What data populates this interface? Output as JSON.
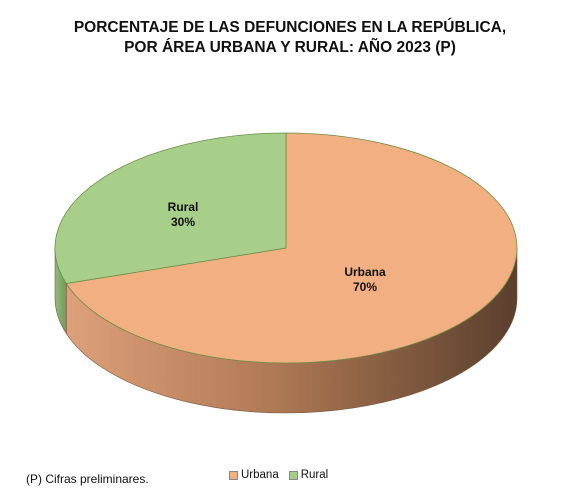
{
  "chart_data": {
    "type": "pie",
    "title": "PORCENTAJE DE LAS DEFUNCIONES EN LA REPÚBLICA, POR ÁREA URBANA Y RURAL: AÑO 2023 (P)",
    "title_lines": [
      "PORCENTAJE DE LAS DEFUNCIONES EN LA REPÚBLICA,",
      "POR ÁREA URBANA Y RURAL: AÑO 2023 (P)"
    ],
    "categories": [
      "Urbana",
      "Rural"
    ],
    "values": [
      70,
      30
    ],
    "value_labels": [
      "70%",
      "30%"
    ],
    "colors": [
      "#F2AF82",
      "#A7CF8A"
    ],
    "style": "3d",
    "legend_position": "bottom"
  },
  "footnote": "(P) Cifras  preliminares."
}
